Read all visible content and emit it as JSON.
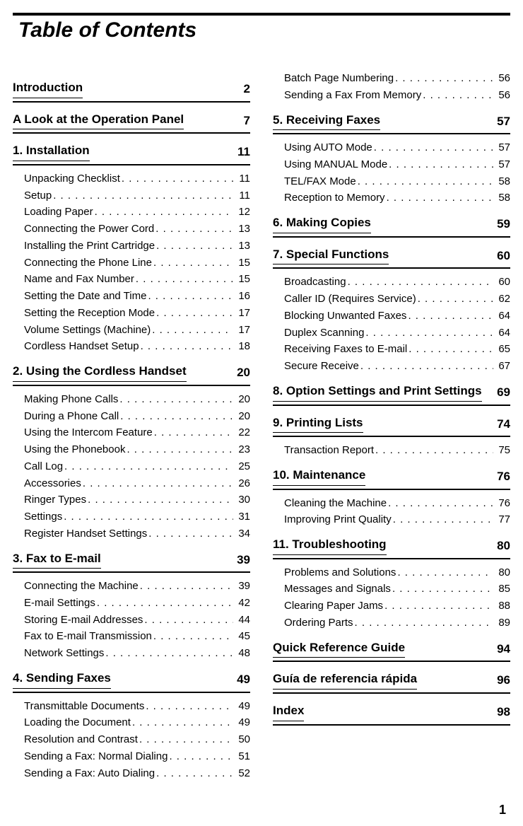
{
  "title": "Table of Contents",
  "page_number": "1",
  "dots_fill": ". . . . . . . . . . . . . . . . . . . . . . . . . . . . . . . . . . . . . . . . . . . . . . . . . . .",
  "sections": [
    {
      "title": "Introduction",
      "page": "2",
      "items": []
    },
    {
      "title": "A Look at the Operation Panel",
      "page": "7",
      "items": []
    },
    {
      "title": "1.  Installation",
      "page": "11",
      "items": [
        {
          "label": "Unpacking Checklist",
          "page": "11"
        },
        {
          "label": "Setup",
          "page": "11"
        },
        {
          "label": "Loading Paper",
          "page": "12"
        },
        {
          "label": "Connecting the Power Cord",
          "page": "13"
        },
        {
          "label": "Installing the Print Cartridge",
          "page": "13"
        },
        {
          "label": "Connecting the Phone Line",
          "page": "15"
        },
        {
          "label": "Name and Fax Number",
          "page": "15"
        },
        {
          "label": "Setting the Date and Time",
          "page": "16"
        },
        {
          "label": "Setting the Reception Mode",
          "page": "17"
        },
        {
          "label": "Volume Settings (Machine)",
          "page": "17"
        },
        {
          "label": "Cordless Handset Setup",
          "page": "18"
        }
      ]
    },
    {
      "title": "2.  Using the Cordless Handset",
      "page": "20",
      "items": [
        {
          "label": "Making Phone Calls",
          "page": "20"
        },
        {
          "label": "During a Phone Call",
          "page": "20"
        },
        {
          "label": "Using the Intercom Feature",
          "page": "22"
        },
        {
          "label": "Using the Phonebook",
          "page": "23"
        },
        {
          "label": "Call Log",
          "page": "25"
        },
        {
          "label": "Accessories",
          "page": "26"
        },
        {
          "label": "Ringer Types",
          "page": "30"
        },
        {
          "label": "Settings",
          "page": "31"
        },
        {
          "label": "Register Handset Settings",
          "page": "34"
        }
      ]
    },
    {
      "title": "3.  Fax to E-mail",
      "page": "39",
      "items": [
        {
          "label": "Connecting the Machine",
          "page": "39"
        },
        {
          "label": "E-mail Settings",
          "page": "42"
        },
        {
          "label": "Storing E-mail Addresses",
          "page": "44"
        },
        {
          "label": "Fax to E-mail Transmission",
          "page": "45"
        },
        {
          "label": "Network Settings",
          "page": "48"
        }
      ]
    },
    {
      "title": "4.  Sending Faxes",
      "page": "49",
      "items": [
        {
          "label": "Transmittable Documents",
          "page": "49"
        },
        {
          "label": "Loading the Document",
          "page": "49"
        },
        {
          "label": "Resolution and Contrast",
          "page": "50"
        },
        {
          "label": "Sending a Fax: Normal Dialing",
          "page": "51"
        },
        {
          "label": "Sending a Fax: Auto Dialing",
          "page": "52"
        },
        {
          "label": "Batch Page Numbering",
          "page": "56"
        },
        {
          "label": "Sending a Fax From Memory",
          "page": "56"
        }
      ]
    },
    {
      "title": "5.  Receiving Faxes",
      "page": "57",
      "items": [
        {
          "label": "Using AUTO Mode",
          "page": "57"
        },
        {
          "label": "Using MANUAL Mode",
          "page": "57"
        },
        {
          "label": "TEL/FAX Mode",
          "page": "58"
        },
        {
          "label": "Reception to Memory",
          "page": "58"
        }
      ]
    },
    {
      "title": "6.  Making Copies",
      "page": "59",
      "items": []
    },
    {
      "title": "7.  Special Functions",
      "page": "60",
      "items": [
        {
          "label": "Broadcasting",
          "page": "60"
        },
        {
          "label": "Caller ID  (Requires Service)",
          "page": "62"
        },
        {
          "label": "Blocking Unwanted Faxes",
          "page": "64"
        },
        {
          "label": "Duplex Scanning",
          "page": "64"
        },
        {
          "label": "Receiving Faxes to E-mail",
          "page": "65"
        },
        {
          "label": "Secure Receive",
          "page": "67"
        }
      ]
    },
    {
      "title": "8.  Option Settings and Print Settings",
      "page": "69",
      "items": []
    },
    {
      "title": "9.  Printing Lists",
      "page": "74",
      "items": [
        {
          "label": "Transaction Report",
          "page": "75"
        }
      ]
    },
    {
      "title": "10.  Maintenance",
      "page": "76",
      "items": [
        {
          "label": "Cleaning the Machine",
          "page": "76"
        },
        {
          "label": "Improving Print Quality",
          "page": "77"
        }
      ]
    },
    {
      "title": "11.  Troubleshooting",
      "page": "80",
      "items": [
        {
          "label": "Problems and Solutions",
          "page": "80"
        },
        {
          "label": "Messages and Signals",
          "page": "85"
        },
        {
          "label": "Clearing Paper Jams",
          "page": "88"
        },
        {
          "label": "Ordering Parts",
          "page": "89"
        }
      ]
    },
    {
      "title": "Quick Reference Guide",
      "page": "94",
      "items": []
    },
    {
      "title": "Guía de referencia rápida",
      "page": "96",
      "items": []
    },
    {
      "title": "Index",
      "page": "98",
      "items": []
    }
  ]
}
